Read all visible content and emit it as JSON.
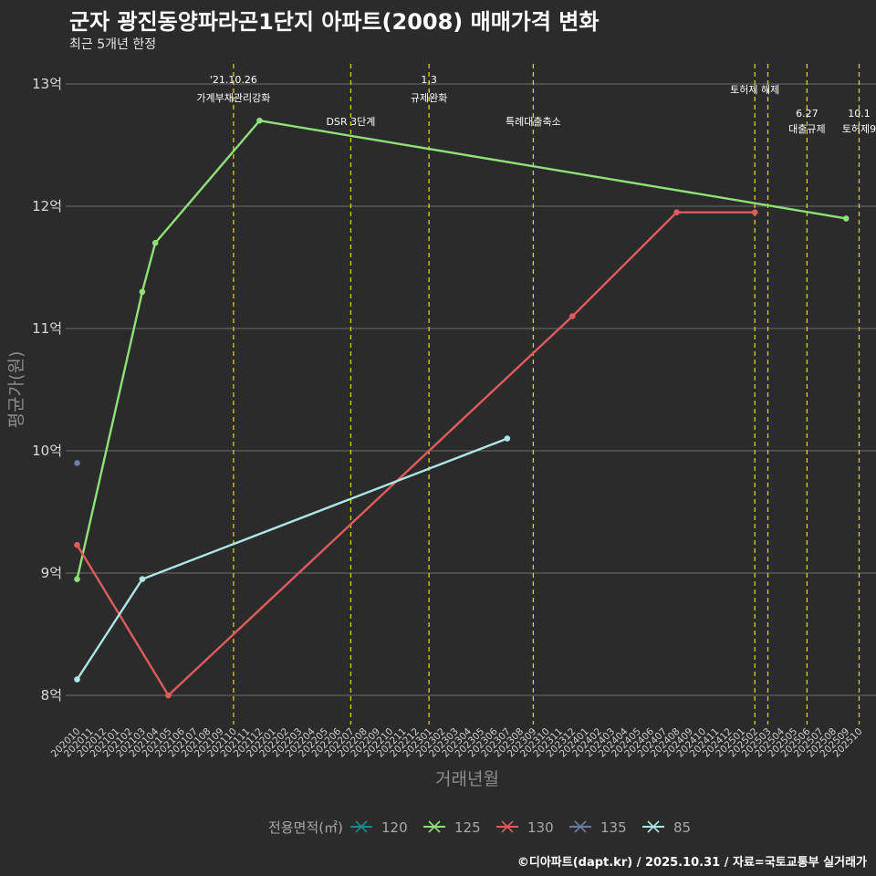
{
  "header": {
    "title": "군자 광진동양파라곤1단지 아파트(2008) 매매가격 변화",
    "subtitle": "최근 5개년 한정"
  },
  "caption": "©디아파트(dapt.kr) / 2025.10.31 / 자료=국토교통부 실거래가",
  "chart_data": {
    "type": "line",
    "title": "군자 광진동양파라곤1단지 아파트(2008) 매매가격 변화",
    "subtitle": "최근 5개년 한정",
    "xlabel": "거래년월",
    "ylabel": "평균가(원)",
    "ylim": [
      7.8,
      13.2
    ],
    "yticks": [
      8,
      9,
      10,
      11,
      12,
      13
    ],
    "ytick_labels": [
      "8억",
      "9억",
      "10억",
      "11억",
      "12억",
      "13억"
    ],
    "grid": true,
    "legend": {
      "title": "전용면적(㎡)",
      "position": "bottom"
    },
    "x_categories": [
      "202010",
      "202011",
      "202012",
      "202101",
      "202102",
      "202103",
      "202104",
      "202105",
      "202106",
      "202107",
      "202108",
      "202109",
      "202110",
      "202111",
      "202112",
      "202201",
      "202202",
      "202203",
      "202204",
      "202205",
      "202206",
      "202207",
      "202208",
      "202209",
      "202210",
      "202211",
      "202212",
      "202301",
      "202302",
      "202303",
      "202304",
      "202305",
      "202306",
      "202307",
      "202308",
      "202309",
      "202310",
      "202311",
      "202312",
      "202401",
      "202402",
      "202403",
      "202404",
      "202405",
      "202406",
      "202407",
      "202408",
      "202409",
      "202410",
      "202411",
      "202412",
      "202501",
      "202502",
      "202503",
      "202504",
      "202505",
      "202506",
      "202507",
      "202508",
      "202509",
      "202510"
    ],
    "series": [
      {
        "name": "120",
        "color": "#1f8a8c",
        "points": []
      },
      {
        "name": "125",
        "color": "#90e07a",
        "points": [
          [
            "202010",
            8.95
          ],
          [
            "202103",
            11.3
          ],
          [
            "202104",
            11.7
          ],
          [
            "202112",
            12.7
          ],
          [
            "202509",
            11.9
          ]
        ]
      },
      {
        "name": "130",
        "color": "#e05c5c",
        "points": [
          [
            "202010",
            9.23
          ],
          [
            "202105",
            8.0
          ],
          [
            "202312",
            11.1
          ],
          [
            "202408",
            11.95
          ],
          [
            "202502",
            11.95
          ]
        ]
      },
      {
        "name": "135",
        "color": "#6b7fa8",
        "points": [
          [
            "202010",
            9.9
          ]
        ]
      },
      {
        "name": "85",
        "color": "#aee6e6",
        "points": [
          [
            "202010",
            8.13
          ],
          [
            "202103",
            8.95
          ],
          [
            "202307",
            10.1
          ]
        ]
      }
    ],
    "events": [
      {
        "date": "202110",
        "line1": "'21.10.26",
        "line2": "가계부채관리강화"
      },
      {
        "date": "202207",
        "line1": "",
        "line2": "DSR 3단계"
      },
      {
        "date": "202301",
        "line1": "1.3",
        "line2": "규제완화"
      },
      {
        "date": "202309",
        "line1": "",
        "line2": "특례대출축소"
      },
      {
        "date": "202502",
        "line1": "",
        "line2": "토허제 해제"
      },
      {
        "date": "202503",
        "line1": "",
        "line2": ""
      },
      {
        "date": "202506",
        "line1": "6.27",
        "line2": "대출규제"
      },
      {
        "date": "202510",
        "line1": "10.1",
        "line2": "토허제9"
      }
    ]
  }
}
